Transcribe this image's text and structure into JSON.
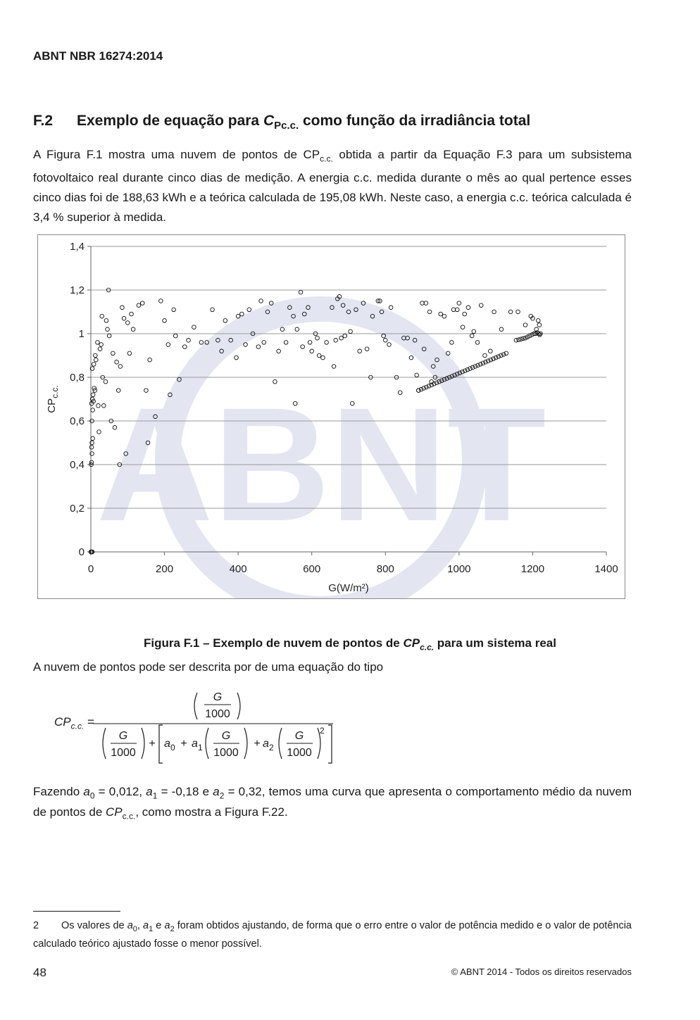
{
  "header": {
    "standard_code": "ABNT NBR 16274:2014"
  },
  "section": {
    "number": "F.2",
    "title_pre": "Exemplo de equação para ",
    "title_var": "C",
    "title_var_sub": "Pc.c.",
    "title_post": " como função da irradiância total"
  },
  "para1": {
    "pre": "A Figura F.1 mostra uma nuvem de pontos de CP",
    "sub": "c.c.",
    "post": " obtida a partir da Equação F.3 para um subsistema fotovoltaico real durante cinco dias de medição. A energia c.c. medida durante o mês ao qual pertence esses cinco dias foi de 188,63 kWh e a teórica calculada de 195,08 kWh. Neste caso, a energia c.c. teórica calculada é 3,4 % superior à medida."
  },
  "chart_data": {
    "type": "scatter",
    "xlabel": "G(W/m²)",
    "ylabel": "CP",
    "ylabel_sub": "c.c.",
    "xlim": [
      0,
      1400
    ],
    "ylim": [
      0,
      1.4
    ],
    "x_ticks": [
      0,
      200,
      400,
      600,
      800,
      1000,
      1200,
      1400
    ],
    "y_ticks": [
      0,
      0.2,
      0.4,
      0.6,
      0.8,
      1,
      1.2,
      1.4
    ],
    "x_tick_labels": [
      "0",
      "200",
      "400",
      "600",
      "800",
      "1000",
      "1200",
      "1400"
    ],
    "y_tick_labels": [
      "0",
      "0,2",
      "0,4",
      "0,6",
      "0,8",
      "1",
      "1,2",
      "1,4"
    ],
    "grid": "horizontal",
    "watermark": "ABNT",
    "points": [
      [
        0,
        0
      ],
      [
        2,
        0
      ],
      [
        4,
        0
      ],
      [
        1,
        0.4
      ],
      [
        2,
        0.41
      ],
      [
        3,
        0.45
      ],
      [
        2,
        0.48
      ],
      [
        3,
        0.5
      ],
      [
        5,
        0.52
      ],
      [
        3,
        0.6
      ],
      [
        5,
        0.65
      ],
      [
        2,
        0.68
      ],
      [
        4,
        0.7
      ],
      [
        6,
        0.72
      ],
      [
        7,
        0.69
      ],
      [
        9,
        0.75
      ],
      [
        11,
        0.74
      ],
      [
        4,
        0.84
      ],
      [
        8,
        0.86
      ],
      [
        14,
        0.88
      ],
      [
        12,
        0.9
      ],
      [
        18,
        0.96
      ],
      [
        20,
        0.67
      ],
      [
        22,
        0.55
      ],
      [
        25,
        0.93
      ],
      [
        28,
        0.95
      ],
      [
        30,
        1.08
      ],
      [
        32,
        0.8
      ],
      [
        35,
        0.67
      ],
      [
        40,
        0.78
      ],
      [
        42,
        1.06
      ],
      [
        45,
        1.02
      ],
      [
        48,
        1.2
      ],
      [
        50,
        0.99
      ],
      [
        55,
        0.6
      ],
      [
        60,
        0.91
      ],
      [
        65,
        0.57
      ],
      [
        70,
        0.87
      ],
      [
        75,
        0.74
      ],
      [
        78,
        0.4
      ],
      [
        80,
        0.85
      ],
      [
        85,
        1.12
      ],
      [
        90,
        1.07
      ],
      [
        95,
        0.45
      ],
      [
        100,
        1.05
      ],
      [
        105,
        0.91
      ],
      [
        110,
        1.09
      ],
      [
        115,
        1.02
      ],
      [
        130,
        1.13
      ],
      [
        140,
        1.14
      ],
      [
        150,
        0.74
      ],
      [
        155,
        0.5
      ],
      [
        160,
        0.88
      ],
      [
        175,
        0.62
      ],
      [
        190,
        1.15
      ],
      [
        200,
        1.06
      ],
      [
        210,
        0.95
      ],
      [
        215,
        0.72
      ],
      [
        225,
        1.11
      ],
      [
        230,
        0.99
      ],
      [
        240,
        0.79
      ],
      [
        255,
        0.94
      ],
      [
        265,
        0.97
      ],
      [
        280,
        1.03
      ],
      [
        300,
        0.96
      ],
      [
        315,
        0.96
      ],
      [
        330,
        1.11
      ],
      [
        345,
        0.97
      ],
      [
        355,
        0.92
      ],
      [
        365,
        1.06
      ],
      [
        380,
        0.97
      ],
      [
        395,
        0.89
      ],
      [
        400,
        1.08
      ],
      [
        410,
        1.09
      ],
      [
        420,
        0.95
      ],
      [
        430,
        1.11
      ],
      [
        440,
        1.0
      ],
      [
        455,
        0.94
      ],
      [
        462,
        1.15
      ],
      [
        470,
        0.96
      ],
      [
        480,
        1.1
      ],
      [
        490,
        1.14
      ],
      [
        500,
        0.78
      ],
      [
        510,
        0.92
      ],
      [
        520,
        1.02
      ],
      [
        530,
        0.96
      ],
      [
        540,
        1.12
      ],
      [
        550,
        1.08
      ],
      [
        555,
        0.68
      ],
      [
        560,
        1.02
      ],
      [
        570,
        1.19
      ],
      [
        575,
        0.94
      ],
      [
        580,
        1.09
      ],
      [
        590,
        1.12
      ],
      [
        595,
        0.96
      ],
      [
        600,
        0.92
      ],
      [
        610,
        1.0
      ],
      [
        615,
        0.98
      ],
      [
        620,
        0.9
      ],
      [
        630,
        0.89
      ],
      [
        640,
        0.96
      ],
      [
        655,
        1.12
      ],
      [
        660,
        0.85
      ],
      [
        665,
        0.97
      ],
      [
        670,
        1.16
      ],
      [
        675,
        1.17
      ],
      [
        680,
        0.98
      ],
      [
        685,
        1.13
      ],
      [
        690,
        0.99
      ],
      [
        700,
        1.1
      ],
      [
        705,
        1.01
      ],
      [
        710,
        0.68
      ],
      [
        720,
        1.11
      ],
      [
        730,
        0.92
      ],
      [
        740,
        1.14
      ],
      [
        750,
        0.93
      ],
      [
        760,
        0.8
      ],
      [
        765,
        1.08
      ],
      [
        780,
        1.15
      ],
      [
        785,
        1.15
      ],
      [
        790,
        1.1
      ],
      [
        795,
        0.99
      ],
      [
        800,
        0.97
      ],
      [
        810,
        0.95
      ],
      [
        815,
        1.12
      ],
      [
        830,
        0.8
      ],
      [
        840,
        0.73
      ],
      [
        850,
        0.98
      ],
      [
        860,
        0.98
      ],
      [
        870,
        0.89
      ],
      [
        880,
        0.97
      ],
      [
        885,
        0.81
      ],
      [
        890,
        0.74
      ],
      [
        900,
        1.14
      ],
      [
        905,
        0.93
      ],
      [
        910,
        1.14
      ],
      [
        920,
        1.1
      ],
      [
        925,
        0.78
      ],
      [
        930,
        0.85
      ],
      [
        935,
        0.8
      ],
      [
        940,
        0.88
      ],
      [
        950,
        1.09
      ],
      [
        960,
        1.08
      ],
      [
        970,
        0.91
      ],
      [
        980,
        0.96
      ],
      [
        985,
        1.11
      ],
      [
        995,
        1.11
      ],
      [
        1000,
        1.14
      ],
      [
        1010,
        1.03
      ],
      [
        1015,
        1.09
      ],
      [
        1025,
        1.12
      ],
      [
        1035,
        0.99
      ],
      [
        1040,
        1.01
      ],
      [
        1050,
        0.96
      ],
      [
        1060,
        1.13
      ],
      [
        1070,
        0.9
      ],
      [
        1085,
        0.92
      ],
      [
        1095,
        1.1
      ],
      [
        1115,
        1.02
      ],
      [
        1140,
        1.1
      ],
      [
        1160,
        1.1
      ],
      [
        1180,
        1.04
      ],
      [
        1195,
        1.08
      ],
      [
        1200,
        1.07
      ],
      [
        1210,
        1.02
      ],
      [
        1215,
        1.06
      ],
      [
        1218,
        1.04
      ],
      [
        890,
        0.74
      ],
      [
        897,
        0.745
      ],
      [
        904,
        0.75
      ],
      [
        911,
        0.755
      ],
      [
        918,
        0.76
      ],
      [
        925,
        0.765
      ],
      [
        932,
        0.77
      ],
      [
        939,
        0.775
      ],
      [
        946,
        0.78
      ],
      [
        953,
        0.785
      ],
      [
        960,
        0.79
      ],
      [
        967,
        0.795
      ],
      [
        974,
        0.8
      ],
      [
        981,
        0.805
      ],
      [
        988,
        0.81
      ],
      [
        995,
        0.815
      ],
      [
        1002,
        0.82
      ],
      [
        1009,
        0.825
      ],
      [
        1016,
        0.83
      ],
      [
        1023,
        0.835
      ],
      [
        1030,
        0.84
      ],
      [
        1037,
        0.845
      ],
      [
        1044,
        0.85
      ],
      [
        1051,
        0.855
      ],
      [
        1058,
        0.86
      ],
      [
        1065,
        0.865
      ],
      [
        1072,
        0.87
      ],
      [
        1079,
        0.875
      ],
      [
        1086,
        0.88
      ],
      [
        1093,
        0.885
      ],
      [
        1100,
        0.89
      ],
      [
        1107,
        0.895
      ],
      [
        1114,
        0.9
      ],
      [
        1121,
        0.905
      ],
      [
        1128,
        0.91
      ],
      [
        1155,
        0.97
      ],
      [
        1162,
        0.972
      ],
      [
        1168,
        0.975
      ],
      [
        1174,
        0.978
      ],
      [
        1180,
        0.98
      ],
      [
        1186,
        0.985
      ],
      [
        1192,
        0.99
      ],
      [
        1198,
        0.995
      ],
      [
        1204,
        1.0
      ],
      [
        1208,
        1.0
      ],
      [
        1212,
        1.005
      ],
      [
        1216,
        1.0
      ],
      [
        1219,
        0.995
      ],
      [
        1221,
        1.0
      ]
    ]
  },
  "figure_caption": {
    "pre": "Figura F.1 – Exemplo de nuvem de pontos de ",
    "var": "CP",
    "var_sub": "c.c.",
    "post": " para um sistema real"
  },
  "para2": "A nuvem de pontos pode ser descrita por de uma equação do tipo",
  "equation": {
    "lhs": "CP",
    "lhs_sub": "c.c.",
    "equals": "=",
    "G": "G",
    "denom_1000": "1000",
    "a0": "a",
    "a0_sub": "0",
    "a1": "a",
    "a1_sub": "1",
    "a2": "a",
    "a2_sub": "2",
    "plus": "+",
    "exponent": "2"
  },
  "para3": {
    "t1": "Fazendo ",
    "a0": "a",
    "a0_sub": "0",
    "t2": " = 0,012, ",
    "a1": "a",
    "a1_sub": "1",
    "t3": " = -0,18 e ",
    "a2": "a",
    "a2_sub": "2",
    "t4": " = 0,32, temos uma curva que apresenta o comportamento médio da nuvem de pontos de ",
    "cp": "CP",
    "cp_sub": "c.c.",
    "t5": ", como mostra a Figura F.2",
    "ref": "2",
    "t6": "."
  },
  "footnote": {
    "mark": "2",
    "t1": "Os valores de ",
    "a0": "a",
    "a0_sub": "0",
    "t2": ", ",
    "a1": "a",
    "a1_sub": "1",
    "t3": " e ",
    "a2": "a",
    "a2_sub": "2",
    "t4": " foram obtidos ajustando, de forma que o erro entre o valor de potência medido e o valor de potência calculado teórico ajustado fosse o menor possível."
  },
  "footer": {
    "page_number": "48",
    "copyright": "© ABNT 2014 - Todos os direitos reservados"
  }
}
